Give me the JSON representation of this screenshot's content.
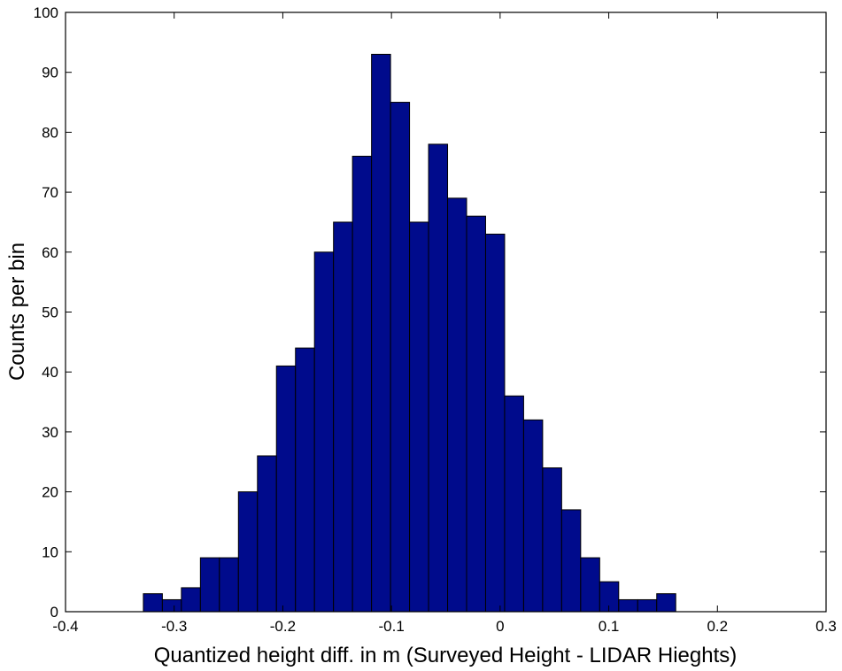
{
  "chart_data": {
    "type": "bar",
    "title": "",
    "xlabel": "Quantized height diff. in m (Surveyed Height - LIDAR Hieghts)",
    "ylabel": "Counts per bin",
    "xlim": [
      -0.4,
      0.3
    ],
    "ylim": [
      0,
      100
    ],
    "xticks": [
      -0.4,
      -0.3,
      -0.2,
      -0.1,
      0,
      0.1,
      0.2,
      0.3
    ],
    "xtick_labels": [
      "-0.4",
      "-0.3",
      "-0.2",
      "-0.1",
      "0",
      "0.1",
      "0.2",
      "0.3"
    ],
    "yticks": [
      0,
      10,
      20,
      30,
      40,
      50,
      60,
      70,
      80,
      90,
      100
    ],
    "ytick_labels": [
      "0",
      "10",
      "20",
      "30",
      "40",
      "50",
      "60",
      "70",
      "80",
      "90",
      "100"
    ],
    "bin_width": 0.0175,
    "bin_centers": [
      -0.3196,
      -0.3021,
      -0.2846,
      -0.2671,
      -0.2496,
      -0.2321,
      -0.2146,
      -0.1971,
      -0.1796,
      -0.1621,
      -0.1446,
      -0.1271,
      -0.1096,
      -0.0921,
      -0.0746,
      -0.0571,
      -0.0396,
      -0.0221,
      -0.0046,
      0.0129,
      0.0304,
      0.0479,
      0.0654,
      0.0829,
      0.1004,
      0.1179,
      0.1354,
      0.1529
    ],
    "values": [
      3,
      2,
      4,
      9,
      9,
      20,
      26,
      41,
      44,
      60,
      65,
      76,
      93,
      85,
      65,
      78,
      69,
      66,
      63,
      36,
      32,
      24,
      17,
      9,
      5,
      2,
      2,
      3
    ],
    "bar_color": "#000b8c",
    "edge_color": "#000000",
    "grid": false,
    "legend": "none"
  }
}
